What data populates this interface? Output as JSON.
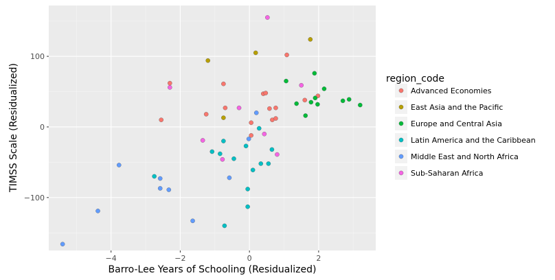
{
  "chart_data": {
    "type": "scatter",
    "xlabel": "Barro-Lee Years of Schooling (Residualized)",
    "ylabel": "TIMSS Scale (Residualized)",
    "xlim": [
      -5.8,
      3.65
    ],
    "ylim": [
      -175,
      172
    ],
    "x_ticks": [
      -4,
      -2,
      0,
      2
    ],
    "y_ticks": [
      -100,
      0,
      100
    ],
    "x_tick_labels": [
      "−4",
      "−2",
      "0",
      "2"
    ],
    "y_tick_labels": [
      "−100",
      "0",
      "100"
    ],
    "grid": true,
    "legend_title": "region_code",
    "legend_position": "right",
    "series": [
      {
        "name": "Advanced Economies",
        "color": "#F8766D",
        "points": [
          [
            -2.3,
            62
          ],
          [
            -2.55,
            10
          ],
          [
            -1.25,
            18
          ],
          [
            -0.75,
            61
          ],
          [
            -0.7,
            27
          ],
          [
            0.05,
            6
          ],
          [
            0.05,
            -12
          ],
          [
            0.4,
            47
          ],
          [
            0.47,
            48
          ],
          [
            0.58,
            26
          ],
          [
            0.66,
            10
          ],
          [
            0.76,
            12
          ],
          [
            0.76,
            27
          ],
          [
            1.08,
            102
          ],
          [
            1.6,
            38
          ],
          [
            1.98,
            44
          ]
        ]
      },
      {
        "name": "East Asia and the Pacific",
        "color": "#B79F00",
        "points": [
          [
            -1.2,
            94
          ],
          [
            0.18,
            105
          ],
          [
            1.76,
            124
          ],
          [
            -0.75,
            13
          ]
        ]
      },
      {
        "name": "Europe and Central Asia",
        "color": "#00BA38",
        "points": [
          [
            1.06,
            65
          ],
          [
            1.36,
            33
          ],
          [
            1.62,
            16
          ],
          [
            1.78,
            35
          ],
          [
            1.88,
            76
          ],
          [
            1.9,
            41
          ],
          [
            1.97,
            32
          ],
          [
            2.16,
            54
          ],
          [
            2.7,
            37
          ],
          [
            2.88,
            39
          ],
          [
            3.2,
            31
          ]
        ]
      },
      {
        "name": "Latin America and the Caribbean",
        "color": "#00BFC4",
        "points": [
          [
            -2.75,
            -70
          ],
          [
            -1.08,
            -35
          ],
          [
            -0.75,
            -20
          ],
          [
            -0.85,
            -38
          ],
          [
            -0.72,
            -140
          ],
          [
            -0.45,
            -45
          ],
          [
            -0.1,
            -27
          ],
          [
            -0.05,
            -88
          ],
          [
            -0.05,
            -113
          ],
          [
            0.1,
            -61
          ],
          [
            0.28,
            -2
          ],
          [
            0.33,
            -52
          ],
          [
            0.55,
            -52
          ],
          [
            0.65,
            -32
          ]
        ]
      },
      {
        "name": "Middle East and North Africa",
        "color": "#619CFF",
        "points": [
          [
            -5.4,
            -166
          ],
          [
            -4.38,
            -119
          ],
          [
            -3.77,
            -54
          ],
          [
            -2.58,
            -73
          ],
          [
            -2.58,
            -87
          ],
          [
            -2.33,
            -89
          ],
          [
            -1.64,
            -133
          ],
          [
            -0.58,
            -72
          ],
          [
            -0.02,
            -17
          ],
          [
            0.2,
            20
          ]
        ]
      },
      {
        "name": "Sub-Saharan Africa",
        "color": "#F564E3",
        "points": [
          [
            -2.3,
            56
          ],
          [
            -1.35,
            -19
          ],
          [
            -0.78,
            -46
          ],
          [
            -0.3,
            27
          ],
          [
            0.43,
            -10
          ],
          [
            0.8,
            -39
          ],
          [
            1.5,
            59
          ],
          [
            0.52,
            155
          ]
        ]
      }
    ]
  }
}
